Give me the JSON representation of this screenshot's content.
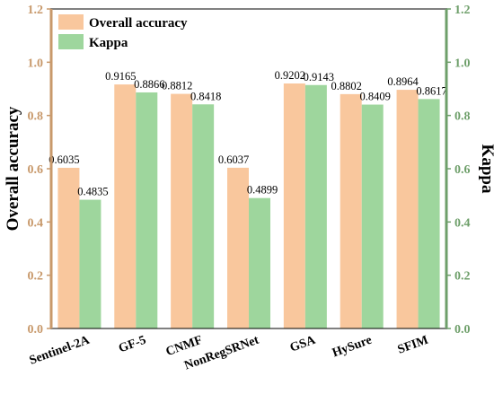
{
  "chart_data": {
    "type": "bar",
    "categories": [
      "Sentinel-2A",
      "GF-5",
      "CNMF",
      "NonRegSRNet",
      "GSA",
      "HySure",
      "SFIM"
    ],
    "series": [
      {
        "name": "Overall accuracy",
        "values": [
          0.6035,
          0.9165,
          0.8812,
          0.6037,
          0.9202,
          0.8802,
          0.8964
        ],
        "labels": [
          "0.6035",
          "0.9165",
          "0.8812",
          "0.6037",
          "0.9202",
          "0.8802",
          "0.8964"
        ],
        "color": "#F9C79D"
      },
      {
        "name": "Kappa",
        "values": [
          0.4835,
          0.8866,
          0.8418,
          0.4899,
          0.9143,
          0.8409,
          0.8617
        ],
        "labels": [
          "0.4835",
          "0.8866",
          "0.8418",
          "0.4899",
          "0.9143",
          "0.8409",
          "0.8617"
        ],
        "color": "#9ED69D"
      }
    ],
    "ylabel": "Overall accuracy",
    "y2label": "Kappa",
    "ylim": [
      0,
      1.2
    ],
    "y2lim": [
      0,
      1.2
    ],
    "yticks": [
      "0.0",
      "0.2",
      "0.4",
      "0.6",
      "0.8",
      "1.0",
      "1.2"
    ],
    "y2ticks": [
      "0.0",
      "0.2",
      "0.4",
      "0.6",
      "0.8",
      "1.0",
      "1.2"
    ],
    "left_axis_color": "#C8996B",
    "right_axis_color": "#6E9F6A",
    "legend_position": "top-left",
    "grid": false
  }
}
